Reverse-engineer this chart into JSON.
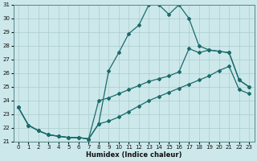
{
  "xlabel": "Humidex (Indice chaleur)",
  "background_color": "#cce8eb",
  "grid_color": "#aacccc",
  "line_color": "#1a6b6b",
  "xlim": [
    -0.5,
    23.5
  ],
  "ylim": [
    21,
    31
  ],
  "xticks": [
    0,
    1,
    2,
    3,
    4,
    5,
    6,
    7,
    8,
    9,
    10,
    11,
    12,
    13,
    14,
    15,
    16,
    17,
    18,
    19,
    20,
    21,
    22,
    23
  ],
  "yticks": [
    21,
    22,
    23,
    24,
    25,
    26,
    27,
    28,
    29,
    30,
    31
  ],
  "series": {
    "line1_peak": {
      "x": [
        0,
        1,
        2,
        3,
        4,
        5,
        6,
        7,
        8,
        9,
        10,
        11,
        12,
        13,
        14,
        15,
        16,
        17,
        18,
        19,
        20,
        21,
        22,
        23
      ],
      "y": [
        23.5,
        22.2,
        21.8,
        21.5,
        21.4,
        21.3,
        21.3,
        21.2,
        22.3,
        26.2,
        27.5,
        28.9,
        29.5,
        31.0,
        31.0,
        30.3,
        31.0,
        30.0,
        28.0,
        27.7,
        27.6,
        27.5,
        25.5,
        25.0
      ]
    },
    "line2_upper_flat": {
      "x": [
        0,
        1,
        2,
        3,
        4,
        5,
        6,
        7,
        8,
        9,
        10,
        11,
        12,
        13,
        14,
        15,
        16,
        17,
        18,
        19,
        20,
        21,
        22,
        23
      ],
      "y": [
        23.5,
        22.2,
        21.8,
        21.5,
        21.4,
        21.3,
        21.3,
        21.2,
        24.0,
        24.2,
        24.5,
        24.8,
        25.1,
        25.4,
        25.6,
        25.8,
        26.1,
        27.8,
        27.5,
        27.7,
        27.6,
        27.5,
        25.5,
        25.0
      ]
    },
    "line3_lower_flat": {
      "x": [
        0,
        1,
        2,
        3,
        4,
        5,
        6,
        7,
        8,
        9,
        10,
        11,
        12,
        13,
        14,
        15,
        16,
        17,
        18,
        19,
        20,
        21,
        22,
        23
      ],
      "y": [
        23.5,
        22.2,
        21.8,
        21.5,
        21.4,
        21.3,
        21.3,
        21.2,
        22.3,
        22.5,
        22.8,
        23.2,
        23.6,
        24.0,
        24.3,
        24.6,
        24.9,
        25.2,
        25.5,
        25.8,
        26.2,
        26.5,
        24.8,
        24.5
      ]
    }
  }
}
